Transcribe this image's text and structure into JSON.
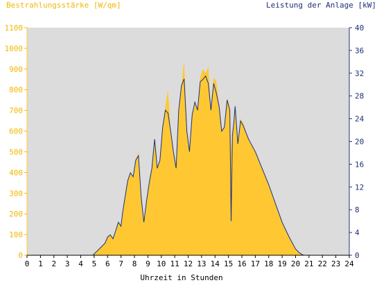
{
  "colors": {
    "irradiance": "#ffc832",
    "irradiance_axis": "#f0b800",
    "power": "#1a2f80",
    "power_axis": "#1e2f78",
    "plot_background": "#dcdcdc",
    "x_axis_text": "#000000"
  },
  "chart_data": {
    "type": "area",
    "grid": false,
    "legend": "none",
    "x_range": [
      0,
      24
    ],
    "x_ticks": [
      "0",
      "1",
      "2",
      "3",
      "4",
      "5",
      "6",
      "7",
      "8",
      "9",
      "10",
      "11",
      "12",
      "13",
      "14",
      "15",
      "16",
      "17",
      "18",
      "19",
      "20",
      "21",
      "22",
      "23",
      "24"
    ],
    "xlabel": "Uhrzeit in Stunden",
    "left_axis": {
      "label": "Bestrahlungsstärke [W/qm]",
      "range": [
        0,
        1100
      ],
      "ticks": [
        "0",
        "100",
        "200",
        "300",
        "400",
        "500",
        "600",
        "700",
        "800",
        "900",
        "1000",
        "1100"
      ]
    },
    "right_axis": {
      "label": "Leistung der Anlage [kW]",
      "range": [
        0,
        40
      ],
      "ticks": [
        "0",
        "4",
        "8",
        "12",
        "16",
        "20",
        "24",
        "28",
        "32",
        "36",
        "40"
      ]
    },
    "series": [
      {
        "axis": "left",
        "style": "filled area",
        "x": [
          0,
          4.9,
          5.2,
          5.5,
          5.8,
          6.0,
          6.2,
          6.4,
          6.6,
          6.8,
          7.0,
          7.1,
          7.3,
          7.5,
          7.7,
          7.9,
          8.1,
          8.3,
          8.5,
          8.7,
          8.9,
          9.1,
          9.3,
          9.5,
          9.7,
          9.9,
          10.1,
          10.3,
          10.5,
          10.7,
          10.9,
          11.1,
          11.3,
          11.5,
          11.7,
          11.9,
          12.1,
          12.3,
          12.5,
          12.7,
          12.9,
          13.1,
          13.3,
          13.5,
          13.7,
          13.9,
          14.1,
          14.3,
          14.5,
          14.7,
          14.9,
          15.1,
          15.2,
          15.3,
          15.4,
          15.5,
          15.7,
          15.9,
          16.1,
          16.5,
          17.0,
          17.5,
          18.0,
          18.5,
          19.0,
          19.5,
          20.0,
          20.3,
          20.6,
          20.8,
          24
        ],
        "values": [
          0,
          0,
          20,
          40,
          60,
          90,
          100,
          80,
          120,
          160,
          140,
          200,
          280,
          360,
          400,
          380,
          460,
          500,
          280,
          160,
          260,
          350,
          420,
          560,
          420,
          460,
          620,
          720,
          800,
          600,
          500,
          420,
          700,
          820,
          940,
          600,
          500,
          680,
          740,
          700,
          860,
          900,
          880,
          910,
          700,
          860,
          840,
          720,
          600,
          620,
          760,
          720,
          500,
          580,
          640,
          720,
          540,
          660,
          640,
          560,
          500,
          420,
          340,
          250,
          160,
          90,
          30,
          10,
          0,
          0,
          0
        ]
      },
      {
        "axis": "right",
        "style": "line",
        "x": [
          0,
          4.9,
          5.2,
          5.5,
          5.8,
          6.0,
          6.2,
          6.4,
          6.6,
          6.8,
          7.0,
          7.1,
          7.3,
          7.5,
          7.7,
          7.9,
          8.1,
          8.3,
          8.5,
          8.7,
          8.9,
          9.1,
          9.3,
          9.5,
          9.7,
          9.9,
          10.1,
          10.3,
          10.5,
          10.7,
          10.9,
          11.1,
          11.3,
          11.5,
          11.7,
          11.9,
          12.1,
          12.3,
          12.5,
          12.7,
          12.9,
          13.1,
          13.3,
          13.5,
          13.7,
          13.9,
          14.1,
          14.3,
          14.5,
          14.7,
          14.9,
          15.1,
          15.2,
          15.3,
          15.4,
          15.5,
          15.7,
          15.9,
          16.1,
          16.5,
          17.0,
          17.5,
          18.0,
          18.5,
          19.0,
          19.5,
          20.0,
          20.3,
          20.6,
          20.8,
          24
        ],
        "values": [
          0,
          0,
          0.7,
          1.4,
          2.1,
          3.2,
          3.6,
          2.9,
          4.3,
          5.8,
          5.1,
          7.2,
          10.2,
          13.1,
          14.5,
          13.8,
          16.7,
          17.5,
          10.2,
          5.8,
          9.5,
          12.7,
          15.3,
          20.4,
          15.3,
          16.7,
          22.5,
          25.5,
          25.0,
          21.8,
          18.2,
          15.3,
          25.5,
          29.8,
          31.0,
          21.8,
          18.2,
          24.7,
          26.9,
          25.5,
          30.5,
          30.9,
          31.5,
          30.2,
          25.5,
          30.2,
          28.5,
          26.2,
          21.8,
          22.5,
          27.3,
          25.5,
          6.0,
          21.1,
          23.3,
          26.2,
          19.6,
          23.6,
          22.8,
          20.4,
          18.2,
          15.3,
          12.4,
          9.1,
          5.8,
          3.3,
          1.1,
          0.4,
          0,
          0,
          0
        ]
      }
    ]
  }
}
